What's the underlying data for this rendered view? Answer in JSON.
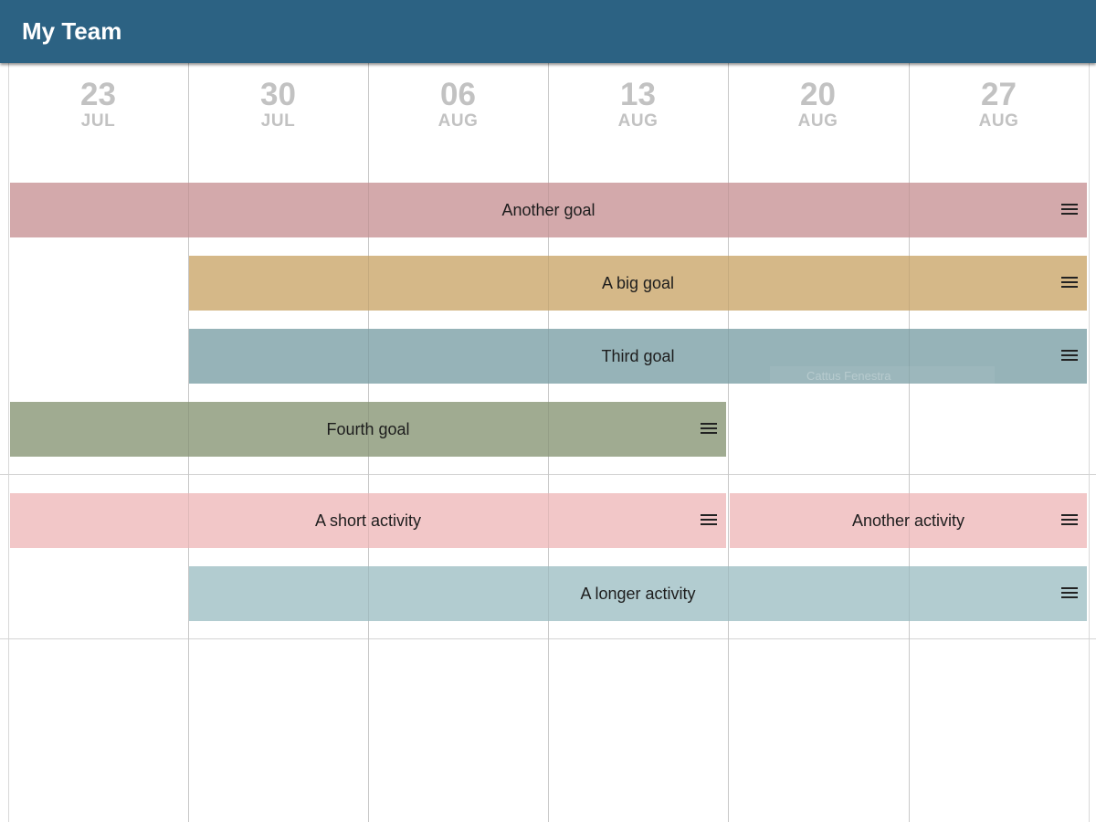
{
  "header": {
    "title": "My Team"
  },
  "timeline": {
    "columns": [
      {
        "day": "23",
        "month": "JUL"
      },
      {
        "day": "30",
        "month": "JUL"
      },
      {
        "day": "06",
        "month": "AUG"
      },
      {
        "day": "13",
        "month": "AUG"
      },
      {
        "day": "20",
        "month": "AUG"
      },
      {
        "day": "27",
        "month": "AUG"
      }
    ]
  },
  "goals": [
    {
      "label": "Another goal",
      "color": "#d3a9ab"
    },
    {
      "label": "A big goal",
      "color": "#d5b888"
    },
    {
      "label": "Third goal",
      "color": "#96b3b8"
    },
    {
      "label": "Fourth goal",
      "color": "#a0ab91"
    }
  ],
  "activities": [
    {
      "label": "A short activity",
      "color": "#f2c7c8"
    },
    {
      "label": "Another activity",
      "color": "#f2c7c8"
    },
    {
      "label": "A longer activity",
      "color": "#b2ccd0"
    }
  ],
  "drag_ghost": {
    "label": "Cattus Fenestra"
  },
  "icons": {
    "bar_menu": "hamburger-menu-icon"
  }
}
